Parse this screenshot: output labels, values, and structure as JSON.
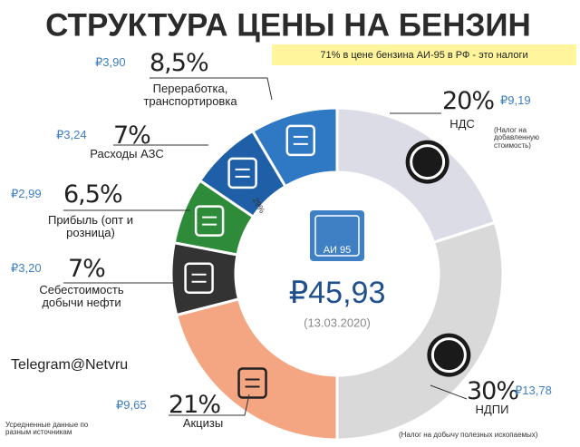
{
  "chart_data": {
    "type": "donut",
    "title": "СТРУКТУРА ЦЕНЫ НА БЕНЗИН",
    "subtitle": "71% в цене бензина АИ-95 в РФ - это налоги",
    "categories": [
      "НДС",
      "НДПИ",
      "Акцизы",
      "Себестоимость добычи нефти",
      "Прибыль (опт и розница)",
      "Расходы АЗС",
      "Переработка, транспортировка"
    ],
    "values": [
      20,
      30,
      21,
      7,
      6.5,
      7,
      8.5
    ],
    "value_labels": [
      "20%",
      "30%",
      "21%",
      "7%",
      "6,5%",
      "7%",
      "8,5%"
    ],
    "prices": [
      "₽9,19",
      "₽13,78",
      "₽9,65",
      "₽3,20",
      "₽2,99",
      "₽3,24",
      "₽3,90"
    ],
    "colors": [
      "#dcdce6",
      "#d9d9d9",
      "#f4a582",
      "#333333",
      "#2e8b3a",
      "#1f5fa8",
      "#2f78c4"
    ],
    "annotations": {
      "nds_note": "(Налог на добавленную стоимость)",
      "ndpi_note": "(Налог на добычу полезных ископаемых)",
      "inner_share": "29%",
      "fuel_badge": "АИ 95",
      "center_total": "₽45,93",
      "center_date": "(13.03.2020)",
      "watermark": "Telegram@Netvru",
      "source": "Усредненные данные по разным источникам"
    }
  }
}
